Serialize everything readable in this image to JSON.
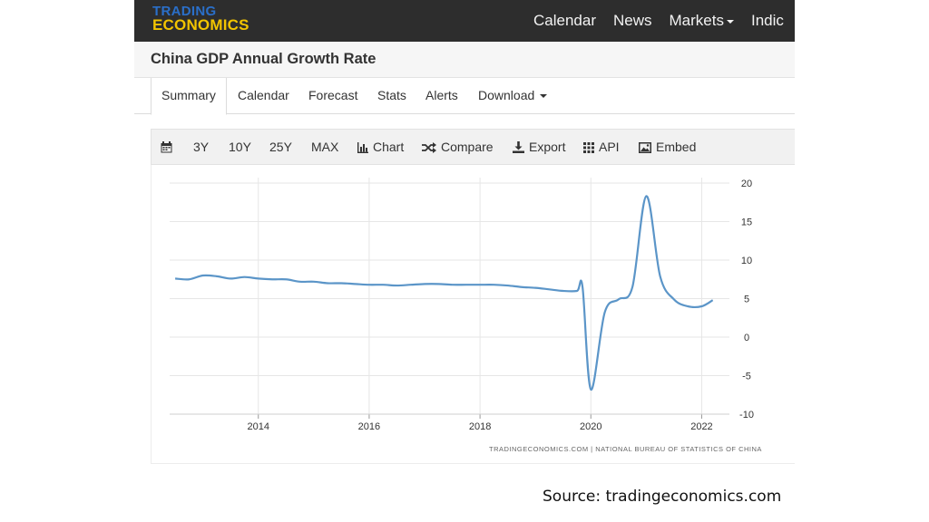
{
  "header": {
    "logo_line1": "TRADING",
    "logo_line2": "ECONOMICS",
    "nav": [
      "Calendar",
      "News",
      "Markets",
      "Indic"
    ]
  },
  "page_title": "China GDP Annual Growth Rate",
  "tabs": [
    "Summary",
    "Calendar",
    "Forecast",
    "Stats",
    "Alerts",
    "Download"
  ],
  "toolbar": {
    "ranges": [
      "3Y",
      "10Y",
      "25Y",
      "MAX"
    ],
    "chart": "Chart",
    "compare": "Compare",
    "export": "Export",
    "api": "API",
    "embed": "Embed"
  },
  "attribution": "TRADINGECONOMICS.COM  |  NATIONAL BUREAU OF STATISTICS OF CHINA",
  "source_caption": "Source: tradingeconomics.com",
  "colors": {
    "nav_bg": "#2d2d2d",
    "logo_blue": "#2a6fc9",
    "logo_yellow": "#f2c400",
    "line": "#5b95c8"
  },
  "chart_data": {
    "type": "line",
    "title": "",
    "xlabel": "",
    "ylabel": "",
    "ylim": [
      -10,
      20
    ],
    "yticks": [
      -10,
      -5,
      0,
      5,
      10,
      15,
      20
    ],
    "xticks": [
      "2014",
      "2016",
      "2018",
      "2020",
      "2022"
    ],
    "xlim": [
      2012.4,
      2022.5
    ],
    "grid": true,
    "series": [
      {
        "name": "",
        "points": [
          [
            2012.5,
            7.6
          ],
          [
            2012.75,
            7.5
          ],
          [
            2013.0,
            8.0
          ],
          [
            2013.25,
            7.9
          ],
          [
            2013.5,
            7.6
          ],
          [
            2013.75,
            7.8
          ],
          [
            2014.0,
            7.6
          ],
          [
            2014.25,
            7.5
          ],
          [
            2014.5,
            7.5
          ],
          [
            2014.75,
            7.2
          ],
          [
            2015.0,
            7.2
          ],
          [
            2015.25,
            7.0
          ],
          [
            2015.5,
            7.0
          ],
          [
            2015.75,
            6.9
          ],
          [
            2016.0,
            6.8
          ],
          [
            2016.25,
            6.8
          ],
          [
            2016.5,
            6.7
          ],
          [
            2016.75,
            6.8
          ],
          [
            2017.0,
            6.9
          ],
          [
            2017.25,
            6.9
          ],
          [
            2017.5,
            6.8
          ],
          [
            2017.75,
            6.8
          ],
          [
            2018.0,
            6.8
          ],
          [
            2018.25,
            6.8
          ],
          [
            2018.5,
            6.7
          ],
          [
            2018.75,
            6.5
          ],
          [
            2019.0,
            6.4
          ],
          [
            2019.25,
            6.2
          ],
          [
            2019.5,
            6.0
          ],
          [
            2019.75,
            6.0
          ],
          [
            2019.85,
            6.5
          ],
          [
            2020.0,
            -6.8
          ],
          [
            2020.25,
            3.2
          ],
          [
            2020.5,
            4.9
          ],
          [
            2020.75,
            6.5
          ],
          [
            2021.0,
            18.3
          ],
          [
            2021.25,
            7.9
          ],
          [
            2021.5,
            4.9
          ],
          [
            2021.75,
            4.0
          ],
          [
            2022.0,
            4.0
          ],
          [
            2022.2,
            4.8
          ]
        ]
      }
    ]
  }
}
